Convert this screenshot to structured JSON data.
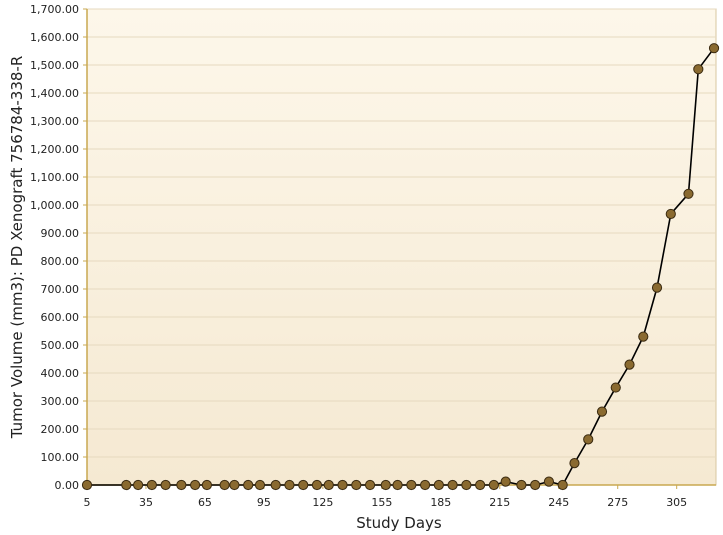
{
  "chart_data": {
    "type": "line",
    "xlabel": "Study Days",
    "ylabel": "Tumor Volume (mm3): PD Xenograft 756784-338-R",
    "xlim": [
      5,
      325
    ],
    "ylim": [
      0,
      1700
    ],
    "x_ticks": [
      "5",
      "35",
      "65",
      "95",
      "125",
      "155",
      "185",
      "215",
      "245",
      "275",
      "305"
    ],
    "y_ticks": [
      "0.00",
      "100.00",
      "200.00",
      "300.00",
      "400.00",
      "500.00",
      "600.00",
      "700.00",
      "800.00",
      "900.00",
      "1,000.00",
      "1,100.00",
      "1,200.00",
      "1,300.00",
      "1,400.00",
      "1,500.00",
      "1,600.00",
      "1,700.00"
    ],
    "grid": true,
    "colors": {
      "line": "#000000",
      "marker_fill": "#8a6a30",
      "marker_stroke": "#3a2a10",
      "plot_bg_top": "#fdf7ea",
      "plot_bg_bottom": "#f5e9d2",
      "grid": "#e6d9bf",
      "axis": "#c9a850"
    },
    "series": [
      {
        "x": [
          5,
          25,
          31,
          38,
          45,
          53,
          60,
          66,
          75,
          80,
          87,
          93,
          101,
          108,
          115,
          122,
          128,
          135,
          142,
          149,
          157,
          163,
          170,
          177,
          184,
          191,
          198,
          205,
          212,
          218,
          226,
          233,
          240,
          247,
          253,
          260,
          267,
          274,
          281,
          288,
          295,
          302,
          311,
          316,
          324
        ],
        "y": [
          0,
          0,
          0,
          0,
          0,
          0,
          0,
          0,
          0,
          0,
          0,
          0,
          0,
          0,
          0,
          0,
          0,
          0,
          0,
          0,
          0,
          0,
          0,
          0,
          0,
          0,
          0,
          0,
          0,
          12,
          0,
          0,
          12,
          0,
          78,
          163,
          262,
          348,
          430,
          530,
          705,
          968,
          1040,
          1485,
          1560
        ]
      }
    ]
  }
}
